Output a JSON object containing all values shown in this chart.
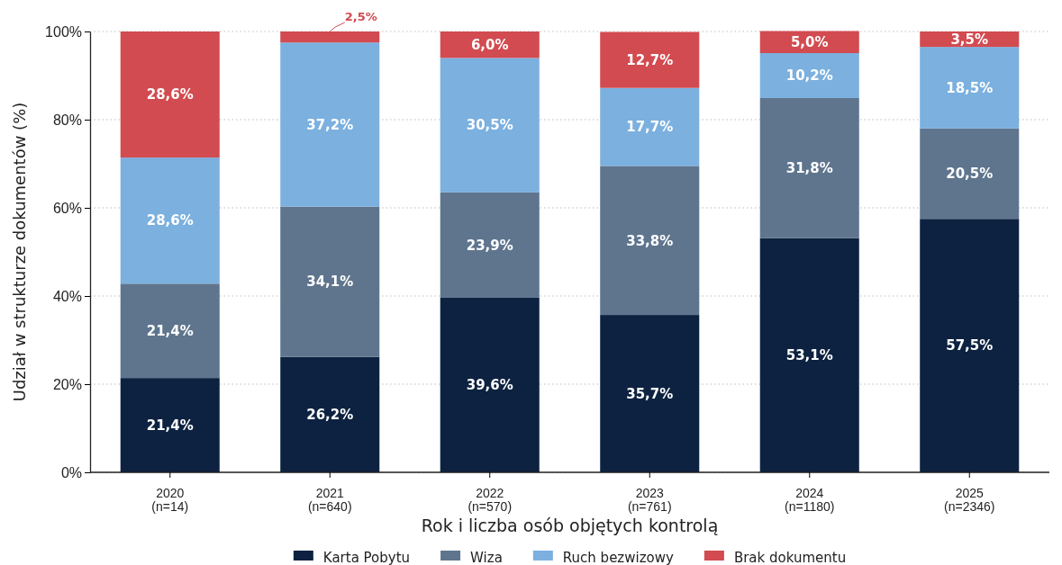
{
  "chart_data": {
    "type": "bar",
    "stacked": true,
    "xlabel": "Rok i liczba osób objętych kontrolą",
    "ylabel": "Udział w strukturze dokumentów (%)",
    "categories": [
      "2020\n(n=14)",
      "2021\n(n=640)",
      "2022\n(n=570)",
      "2023\n(n=761)",
      "2024\n(n=1180)",
      "2025\n(n=2346)"
    ],
    "series": [
      {
        "name": "Karta Pobytu",
        "color": "#0d2240",
        "values": [
          21.4,
          26.2,
          39.6,
          35.7,
          53.1,
          57.5
        ],
        "value_labels": [
          "21,4%",
          "26,2%",
          "39,6%",
          "35,7%",
          "53,1%",
          "57,5%"
        ]
      },
      {
        "name": "Wiza",
        "color": "#5f758e",
        "values": [
          21.4,
          34.1,
          23.9,
          33.8,
          31.8,
          20.5
        ],
        "value_labels": [
          "21,4%",
          "34,1%",
          "23,9%",
          "33,8%",
          "31,8%",
          "20,5%"
        ]
      },
      {
        "name": "Ruch bezwizowy",
        "color": "#7bb0df",
        "values": [
          28.6,
          37.2,
          30.5,
          17.7,
          10.2,
          18.5
        ],
        "value_labels": [
          "28,6%",
          "37,2%",
          "30,5%",
          "17,7%",
          "10,2%",
          "18,5%"
        ]
      },
      {
        "name": "Brak dokumentu",
        "color": "#d24b50",
        "values": [
          28.6,
          2.5,
          6.0,
          12.7,
          5.0,
          3.5
        ],
        "value_labels": [
          "28,6%",
          "2,5%",
          "6,0%",
          "12,7%",
          "5,0%",
          "3,5%"
        ]
      }
    ],
    "ylim": [
      0,
      100
    ],
    "yticks": [
      {
        "value": 0,
        "label": "0%"
      },
      {
        "value": 20,
        "label": "20%"
      },
      {
        "value": 40,
        "label": "40%"
      },
      {
        "value": 60,
        "label": "60%"
      },
      {
        "value": 80,
        "label": "80%"
      },
      {
        "value": 100,
        "label": "100%"
      }
    ],
    "grid": "y",
    "legend": "bottom"
  }
}
